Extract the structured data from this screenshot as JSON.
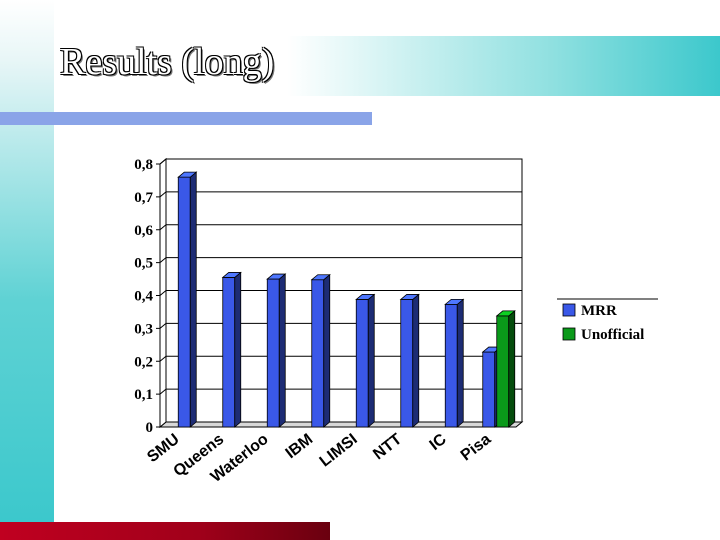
{
  "slide": {
    "title": "Results (long)"
  },
  "colors": {
    "mrr": "#3a58e8",
    "unofficial": "#0a9a1a",
    "accent_teal": "#3cc8cc",
    "accent_blue": "#8aa4e8",
    "accent_red": "#c00020"
  },
  "chart_data": {
    "type": "bar",
    "title": "",
    "xlabel": "",
    "ylabel": "",
    "ylim": [
      0,
      0.8
    ],
    "y_ticks": [
      "0",
      "0,1",
      "0,2",
      "0,3",
      "0,4",
      "0,5",
      "0,6",
      "0,7",
      "0,8"
    ],
    "categories": [
      "SMU",
      "Queens",
      "Waterloo",
      "IBM",
      "LIMSI",
      "NTT",
      "IC",
      "Pisa"
    ],
    "series": [
      {
        "name": "MRR",
        "color": "#3a58e8",
        "values": [
          0.76,
          0.455,
          0.45,
          0.448,
          0.388,
          0.388,
          0.373,
          0.228
        ]
      },
      {
        "name": "Unofficial",
        "color": "#0a9a1a",
        "values": [
          null,
          null,
          null,
          null,
          null,
          null,
          null,
          0.338
        ]
      }
    ],
    "legend": [
      "MRR",
      "Unofficial"
    ],
    "legend_position": "right",
    "grid": true,
    "bar_style": "3d"
  }
}
